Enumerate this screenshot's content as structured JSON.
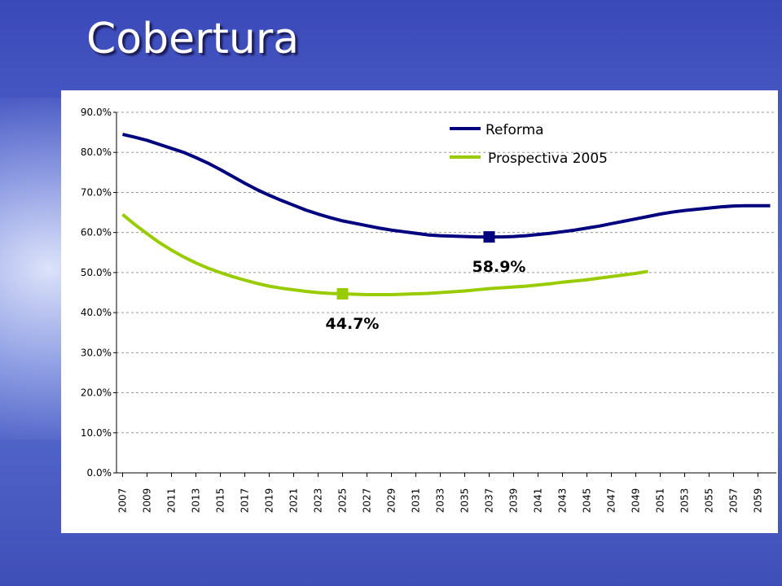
{
  "title": "Cobertura",
  "chart_data": {
    "type": "line",
    "x": [
      2007,
      2008,
      2009,
      2010,
      2011,
      2012,
      2013,
      2014,
      2015,
      2016,
      2017,
      2018,
      2019,
      2020,
      2021,
      2022,
      2023,
      2024,
      2025,
      2026,
      2027,
      2028,
      2029,
      2030,
      2031,
      2032,
      2033,
      2034,
      2035,
      2036,
      2037,
      2038,
      2039,
      2040,
      2041,
      2042,
      2043,
      2044,
      2045,
      2046,
      2047,
      2048,
      2049,
      2050,
      2051,
      2052,
      2053,
      2054,
      2055,
      2056,
      2057,
      2058,
      2059,
      2060
    ],
    "series": [
      {
        "name": "Reforma",
        "color": "#00007f",
        "values": [
          84.5,
          83.8,
          83.0,
          82.0,
          81.0,
          80.0,
          78.7,
          77.3,
          75.7,
          74.0,
          72.3,
          70.7,
          69.3,
          68.0,
          66.8,
          65.6,
          64.6,
          63.7,
          62.9,
          62.3,
          61.7,
          61.1,
          60.6,
          60.2,
          59.8,
          59.4,
          59.2,
          59.1,
          59.0,
          58.9,
          58.9,
          58.9,
          59.0,
          59.2,
          59.5,
          59.8,
          60.2,
          60.6,
          61.1,
          61.6,
          62.2,
          62.8,
          63.4,
          64.0,
          64.6,
          65.1,
          65.5,
          65.8,
          66.1,
          66.4,
          66.6,
          66.7,
          66.7,
          66.7
        ]
      },
      {
        "name": "Prospectiva 2005",
        "color": "#99cc00",
        "values": [
          64.5,
          62.0,
          59.7,
          57.5,
          55.6,
          53.9,
          52.4,
          51.1,
          50.0,
          49.0,
          48.1,
          47.3,
          46.6,
          46.1,
          45.7,
          45.3,
          45.0,
          44.8,
          44.7,
          44.6,
          44.5,
          44.5,
          44.5,
          44.6,
          44.7,
          44.8,
          45.0,
          45.2,
          45.4,
          45.7,
          46.0,
          46.2,
          46.4,
          46.6,
          46.9,
          47.2,
          47.6,
          47.9,
          48.2,
          48.6,
          49.0,
          49.4,
          49.8,
          50.3,
          null,
          null,
          null,
          null,
          null,
          null,
          null,
          null,
          null,
          null
        ]
      }
    ],
    "annotations": [
      {
        "x": 2037,
        "value": 58.9,
        "label": "58.9%",
        "color": "#00007f"
      },
      {
        "x": 2025,
        "value": 44.7,
        "label": "44.7%",
        "color": "#99cc00"
      }
    ],
    "xlim": [
      2006.5,
      2060.5
    ],
    "xticks": [
      2007,
      2009,
      2011,
      2013,
      2015,
      2017,
      2019,
      2021,
      2023,
      2025,
      2027,
      2029,
      2031,
      2033,
      2035,
      2037,
      2039,
      2041,
      2043,
      2045,
      2047,
      2049,
      2051,
      2053,
      2055,
      2057,
      2059
    ],
    "ylim": [
      0,
      90
    ],
    "yticks": [
      {
        "value": 0,
        "label": "0.0%"
      },
      {
        "value": 10,
        "label": "10.0%"
      },
      {
        "value": 20,
        "label": "20.0%"
      },
      {
        "value": 30,
        "label": "30.0%"
      },
      {
        "value": 40,
        "label": "40.0%"
      },
      {
        "value": 50,
        "label": "50.0%"
      },
      {
        "value": 60,
        "label": "60.0%"
      },
      {
        "value": 70,
        "label": "70.0%"
      },
      {
        "value": 80,
        "label": "80.0%"
      },
      {
        "value": 90,
        "label": "90.0%"
      }
    ],
    "grid": true,
    "legend": "top"
  }
}
